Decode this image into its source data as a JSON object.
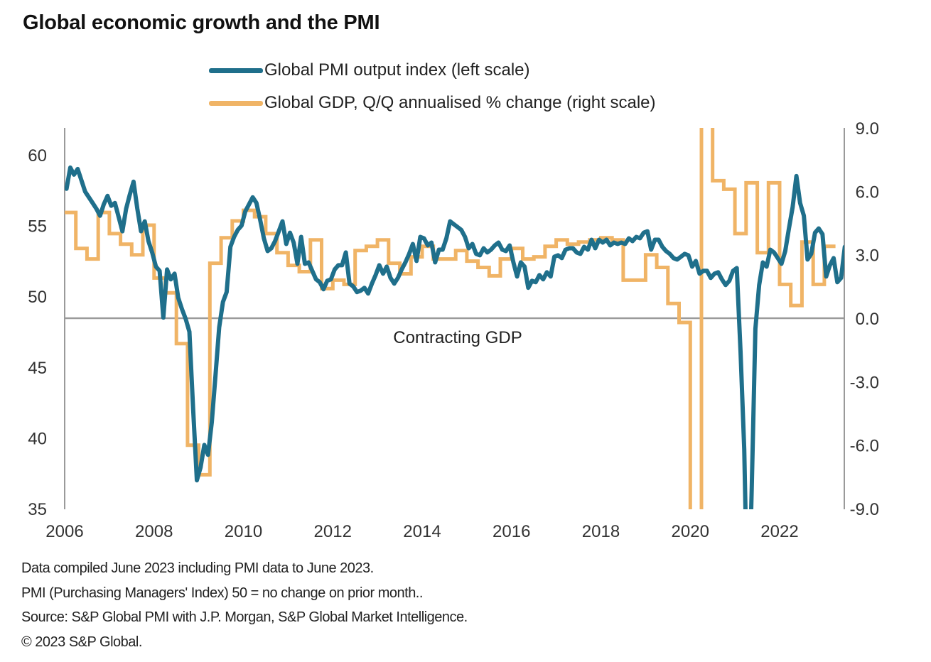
{
  "chart_data": {
    "type": "line",
    "title": "Global economic growth and the PMI",
    "xlabel": "",
    "ylabel_left": "",
    "ylabel_right": "",
    "x_ticks": [
      "2006",
      "2008",
      "2010",
      "2012",
      "2014",
      "2016",
      "2018",
      "2020",
      "2022"
    ],
    "x_range": [
      2006.0,
      2023.45
    ],
    "left_axis": {
      "ylim": [
        35,
        62
      ],
      "ticks": [
        "60",
        "55",
        "50",
        "45",
        "40",
        "35"
      ],
      "tick_values": [
        60,
        55,
        50,
        45,
        40,
        35
      ]
    },
    "right_axis": {
      "ylim": [
        -9.0,
        9.0
      ],
      "ticks": [
        "9.0",
        "6.0",
        "3.0",
        "0.0",
        "-3.0",
        "-6.0",
        "-9.0"
      ],
      "tick_values": [
        9,
        6,
        3,
        0,
        -3,
        -6,
        -9
      ]
    },
    "reference_line": {
      "axis": "right",
      "value": 0.0,
      "label": "Contracting GDP"
    },
    "legend": {
      "placement": "top",
      "entries": [
        {
          "name": "Global PMI output index (left scale)",
          "color": "#1f6f8b"
        },
        {
          "name": "Global GDP, Q/Q annualised % change (right scale)",
          "color": "#f0b466"
        }
      ]
    },
    "grid": false,
    "series": [
      {
        "name": "Global PMI output index (left scale)",
        "axis": "left",
        "frequency": "monthly",
        "start": "2006-01",
        "color": "#1f6f8b",
        "values": [
          57.6,
          59.1,
          58.6,
          59.0,
          58.2,
          57.4,
          57.0,
          56.6,
          56.2,
          55.7,
          56.5,
          57.1,
          56.4,
          56.6,
          55.6,
          54.6,
          56.2,
          57.2,
          58.1,
          56.2,
          54.6,
          55.3,
          53.9,
          53.1,
          52.1,
          51.8,
          48.5,
          51.9,
          51.2,
          51.6,
          49.9,
          49.1,
          48.4,
          47.5,
          42.0,
          37.0,
          37.9,
          39.5,
          38.8,
          41.1,
          44.4,
          47.8,
          49.6,
          50.3,
          53.5,
          54.2,
          54.7,
          55.0,
          56.0,
          56.5,
          57.0,
          56.6,
          55.4,
          54.1,
          53.2,
          53.4,
          53.9,
          54.6,
          55.3,
          53.7,
          54.5,
          53.8,
          52.3,
          54.2,
          52.3,
          52.4,
          51.8,
          51.2,
          51.0,
          50.5,
          51.1,
          51.2,
          51.9,
          52.2,
          52.2,
          53.1,
          50.9,
          50.7,
          50.3,
          50.4,
          50.6,
          50.2,
          50.9,
          51.5,
          52.2,
          51.6,
          52.1,
          51.3,
          50.9,
          51.3,
          51.9,
          52.4,
          53.0,
          53.7,
          52.5,
          54.2,
          54.1,
          53.6,
          53.8,
          52.4,
          53.3,
          53.3,
          54.1,
          55.3,
          55.1,
          54.9,
          54.7,
          54.2,
          53.4,
          53.7,
          53.0,
          52.9,
          53.4,
          53.1,
          53.3,
          53.6,
          53.8,
          53.3,
          53.2,
          53.6,
          52.4,
          51.4,
          52.4,
          52.1,
          50.6,
          51.1,
          51.0,
          51.5,
          51.2,
          51.7,
          51.4,
          52.8,
          52.9,
          52.7,
          53.3,
          53.4,
          53.4,
          53.1,
          53.0,
          53.5,
          53.3,
          54.0,
          53.4,
          54.0,
          53.8,
          54.0,
          53.6,
          53.8,
          53.7,
          53.8,
          53.7,
          54.1,
          53.9,
          54.2,
          54.1,
          54.5,
          54.6,
          53.3,
          54.0,
          54.0,
          53.5,
          53.2,
          53.0,
          52.7,
          52.6,
          52.8,
          53.0,
          52.9,
          52.1,
          52.5,
          51.6,
          51.8,
          51.8,
          51.3,
          51.6,
          51.7,
          51.2,
          50.8,
          51.1,
          51.8,
          52.0,
          46.1,
          39.2,
          26.2,
          36.3,
          47.7,
          50.8,
          52.4,
          52.1,
          53.3,
          53.1,
          52.7,
          52.3,
          53.2,
          54.8,
          56.3,
          58.5,
          56.6,
          55.7,
          52.6,
          53.0,
          54.5,
          54.8,
          54.4,
          51.4,
          52.2,
          52.7,
          51.0,
          51.3,
          53.5,
          50.8,
          49.3,
          49.7,
          49.0,
          48.2,
          48.0,
          49.8,
          52.1,
          53.4,
          54.2,
          54.4,
          52.7
        ]
      },
      {
        "name": "Global GDP, Q/Q annualised % change (right scale)",
        "axis": "right",
        "frequency": "quarterly",
        "start": "2006-Q1",
        "color": "#f0b466",
        "values": [
          5.0,
          3.3,
          2.8,
          5.0,
          4.0,
          3.5,
          3.0,
          4.4,
          1.9,
          1.2,
          -1.2,
          -6.0,
          -7.4,
          2.6,
          3.8,
          4.6,
          5.1,
          4.8,
          4.0,
          3.1,
          2.5,
          2.2,
          3.7,
          1.4,
          1.8,
          1.6,
          3.2,
          3.4,
          3.7,
          2.6,
          2.1,
          2.9,
          3.4,
          2.8,
          2.8,
          3.2,
          2.7,
          2.4,
          2.0,
          2.8,
          3.3,
          2.8,
          2.9,
          3.4,
          3.7,
          3.5,
          3.6,
          3.7,
          3.8,
          3.7,
          1.8,
          1.8,
          3.0,
          2.4,
          0.7,
          -0.2,
          -9.5,
          9.5,
          6.5,
          6.1,
          4.0,
          6.4,
          3.1,
          6.4,
          1.6,
          0.6,
          3.6,
          1.6,
          3.4
        ]
      }
    ]
  },
  "notes": {
    "line1": "Data compiled June 2023 including PMI data to June 2023.",
    "line2": "PMI (Purchasing Managers' Index) 50 = no change on prior month..",
    "line3": "Source: S&P Global PMI with J.P. Morgan, S&P Global Market Intelligence.",
    "line4": "© 2023 S&P Global."
  }
}
